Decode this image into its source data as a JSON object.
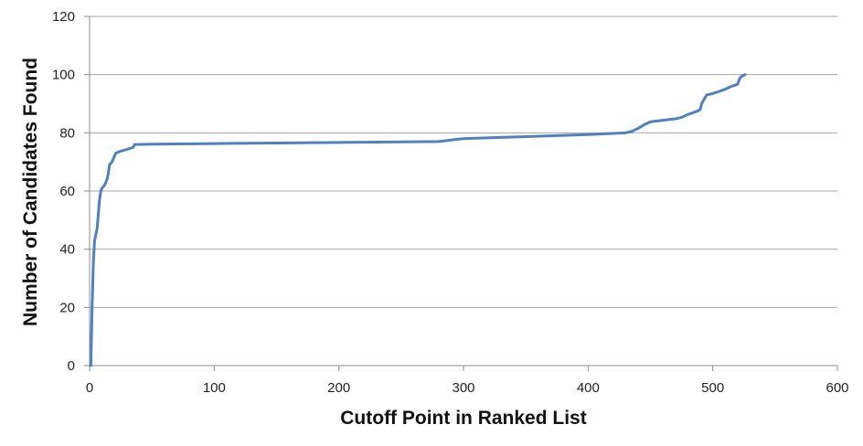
{
  "chart_data": {
    "type": "line",
    "title": "",
    "xlabel": "Cutoff Point in Ranked List",
    "ylabel": "Number of Candidates Found",
    "xlim": [
      0,
      600
    ],
    "ylim": [
      0,
      120
    ],
    "x_ticks": [
      0,
      100,
      200,
      300,
      400,
      500,
      600
    ],
    "y_ticks": [
      0,
      20,
      40,
      60,
      80,
      100,
      120
    ],
    "grid": "horizontal",
    "legend": "none",
    "series": [
      {
        "color": "#4f81bd",
        "points": [
          [
            1,
            0
          ],
          [
            2,
            20
          ],
          [
            3,
            35
          ],
          [
            4,
            43
          ],
          [
            5,
            45
          ],
          [
            6,
            47
          ],
          [
            7,
            52
          ],
          [
            8,
            57
          ],
          [
            9,
            60
          ],
          [
            10,
            61
          ],
          [
            12,
            62
          ],
          [
            14,
            64
          ],
          [
            15,
            66
          ],
          [
            16,
            69
          ],
          [
            18,
            70
          ],
          [
            20,
            72
          ],
          [
            21,
            73
          ],
          [
            25,
            73.7
          ],
          [
            30,
            74.3
          ],
          [
            35,
            75
          ],
          [
            36,
            76
          ],
          [
            50,
            76.1
          ],
          [
            100,
            76.3
          ],
          [
            150,
            76.5
          ],
          [
            200,
            76.7
          ],
          [
            250,
            76.9
          ],
          [
            280,
            77
          ],
          [
            290,
            77.5
          ],
          [
            295,
            77.8
          ],
          [
            300,
            78
          ],
          [
            350,
            78.7
          ],
          [
            400,
            79.4
          ],
          [
            430,
            80
          ],
          [
            435,
            80.5
          ],
          [
            440,
            81.5
          ],
          [
            445,
            82.8
          ],
          [
            450,
            83.8
          ],
          [
            460,
            84.3
          ],
          [
            470,
            84.8
          ],
          [
            475,
            85.3
          ],
          [
            480,
            86.3
          ],
          [
            488,
            87.5
          ],
          [
            490,
            88
          ],
          [
            491,
            90
          ],
          [
            493,
            91.5
          ],
          [
            495,
            93
          ],
          [
            500,
            93.5
          ],
          [
            505,
            94.2
          ],
          [
            510,
            95
          ],
          [
            515,
            96
          ],
          [
            520,
            96.7
          ],
          [
            521,
            98
          ],
          [
            522,
            99
          ],
          [
            524,
            99.6
          ],
          [
            526,
            100
          ]
        ]
      }
    ]
  }
}
